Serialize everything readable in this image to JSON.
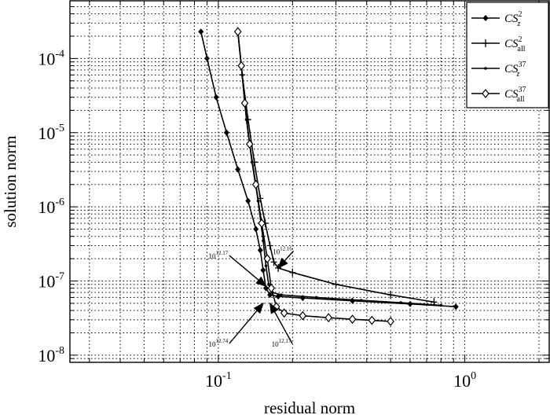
{
  "chart_data": {
    "type": "line",
    "xlabel": "residual norm",
    "ylabel": "solution norm",
    "xscale": "log",
    "yscale": "log",
    "xlim": [
      0.025,
      2.2
    ],
    "ylim": [
      8e-09,
      0.0006
    ],
    "grid": true,
    "legend_position": "top-right",
    "x_ticks": [
      {
        "value": 0.1,
        "label": "10",
        "exp": "-1"
      },
      {
        "value": 1,
        "label": "10",
        "exp": "0"
      }
    ],
    "y_ticks": [
      {
        "value": 1e-08,
        "label": "10",
        "exp": "-8"
      },
      {
        "value": 1e-07,
        "label": "10",
        "exp": "-7"
      },
      {
        "value": 1e-06,
        "label": "10",
        "exp": "-6"
      },
      {
        "value": 1e-05,
        "label": "10",
        "exp": "-5"
      },
      {
        "value": 0.0001,
        "label": "10",
        "exp": "-4"
      }
    ],
    "series": [
      {
        "name": "CS_z^2",
        "label_base": "CS",
        "label_sub": "z",
        "label_sup": "2",
        "marker": "filled-diamond",
        "x": [
          0.085,
          0.09,
          0.098,
          0.108,
          0.12,
          0.132,
          0.142,
          0.148,
          0.152,
          0.156,
          0.162,
          0.175,
          0.22,
          0.35,
          0.6,
          0.92
        ],
        "y": [
          0.00023,
          0.0001,
          3e-05,
          1e-05,
          3.2e-06,
          1.2e-06,
          5e-07,
          2.6e-07,
          1.4e-07,
          8e-08,
          6.5e-08,
          6.2e-08,
          5.9e-08,
          5.4e-08,
          4.9e-08,
          4.5e-08
        ]
      },
      {
        "name": "CS_all^2",
        "label_base": "CS",
        "label_sub": "all",
        "label_sup": "2",
        "marker": "plus",
        "x": [
          0.12,
          0.125,
          0.132,
          0.14,
          0.148,
          0.155,
          0.162,
          0.168,
          0.175,
          0.2,
          0.3,
          0.5,
          0.75
        ],
        "y": [
          0.00023,
          6e-05,
          1.5e-05,
          4e-06,
          1.3e-06,
          6e-07,
          3e-07,
          1.8e-07,
          1.5e-07,
          1.3e-07,
          9e-08,
          6.5e-08,
          5.2e-08
        ]
      },
      {
        "name": "CS_z^37",
        "label_base": "CS",
        "label_sub": "z",
        "label_sup": "37",
        "marker": "dot",
        "x": [
          0.12,
          0.125,
          0.13,
          0.137,
          0.145,
          0.152,
          0.156,
          0.16,
          0.166,
          0.18,
          0.25,
          0.38,
          0.55,
          0.8
        ],
        "y": [
          0.00023,
          6e-05,
          1.5e-05,
          4e-06,
          1.2e-06,
          3.5e-07,
          1.6e-07,
          9e-08,
          7e-08,
          6.5e-08,
          6e-08,
          5.5e-08,
          5.1e-08,
          4.7e-08
        ]
      },
      {
        "name": "CS_all^37",
        "label_base": "CS",
        "label_sub": "all",
        "label_sup": "37",
        "marker": "open-diamond",
        "x": [
          0.12,
          0.124,
          0.128,
          0.134,
          0.142,
          0.15,
          0.158,
          0.164,
          0.172,
          0.185,
          0.22,
          0.28,
          0.35,
          0.42,
          0.5
        ],
        "y": [
          0.00023,
          8e-05,
          2.5e-05,
          7e-06,
          2e-06,
          6e-07,
          2e-07,
          8e-08,
          4.5e-08,
          3.7e-08,
          3.4e-08,
          3.2e-08,
          3.05e-08,
          2.95e-08,
          2.85e-08
        ]
      }
    ],
    "annotations": [
      {
        "text": "10",
        "sup": "12.16",
        "text_x": 0.182,
        "text_y": 2.3e-07,
        "target_x": 0.175,
        "target_y": 1.5e-07
      },
      {
        "text": "10",
        "sup": "12.17",
        "text_x": 0.1,
        "text_y": 2e-07,
        "target_x": 0.156,
        "target_y": 8.5e-08
      },
      {
        "text": "10",
        "sup": "12.74",
        "text_x": 0.1,
        "text_y": 1.3e-08,
        "target_x": 0.152,
        "target_y": 5e-08
      },
      {
        "text": "10",
        "sup": "12.17",
        "text_x": 0.18,
        "text_y": 1.3e-08,
        "target_x": 0.162,
        "target_y": 5e-08
      }
    ]
  }
}
